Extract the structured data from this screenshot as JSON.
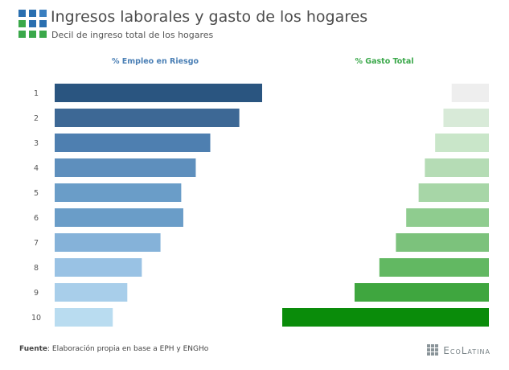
{
  "header": {
    "title": "Ingresos laborales y gasto de los hogares",
    "subtitle": "Decil de ingreso total de los hogares"
  },
  "footer": {
    "source_label": "Fuente",
    "source_text": ": Elaboración propia en base a EPH y ENGHo",
    "brand": "EcoLatina"
  },
  "logo": {
    "icon": "grid-logo-icon"
  },
  "chart_data": {
    "type": "bar",
    "orientation": "horizontal",
    "categories": [
      "1",
      "2",
      "3",
      "4",
      "5",
      "6",
      "7",
      "8",
      "9",
      "10"
    ],
    "series": [
      {
        "name": "% Empleo en Riesgo",
        "values": [
          100,
          89,
          75,
          68,
          61,
          62,
          51,
          42,
          35,
          28
        ],
        "colors": [
          "#2a5580",
          "#3d6895",
          "#4e7fb0",
          "#5e8fbd",
          "#6a9dc8",
          "#6a9dc8",
          "#85b2d9",
          "#99c2e4",
          "#a8ceea",
          "#b9dcf0"
        ]
      },
      {
        "name": "% Gasto Total",
        "values": [
          18,
          22,
          26,
          31,
          34,
          40,
          45,
          53,
          65,
          100
        ],
        "colors": [
          "#eeeeee",
          "#d8ead8",
          "#c9e6c9",
          "#b5dcb5",
          "#a7d6a7",
          "#8fcc8f",
          "#7cc27c",
          "#62b862",
          "#3fa63f",
          "#0a8c0a"
        ]
      }
    ],
    "grid": false,
    "axis_labels": false
  }
}
